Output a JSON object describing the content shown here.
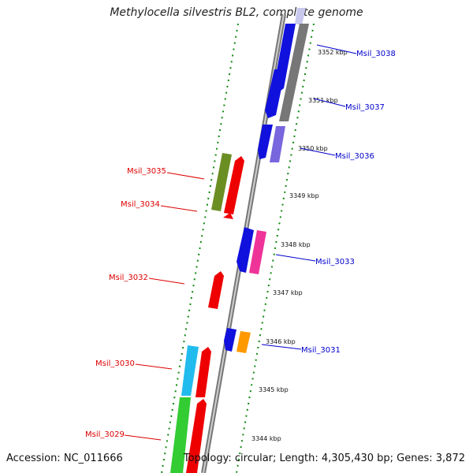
{
  "title": "Methylocella silvestris BL2, complete genome",
  "footer": {
    "accession": "Accession: NC_011666",
    "topology": "Topology: circular; Length: 4,305,430 bp; Genes: 3,872"
  },
  "ticks": [
    "3352 kbp",
    "3351 kbp",
    "3350 kbp",
    "3349 kbp",
    "3348 kbp",
    "3347 kbp",
    "3346 kbp",
    "3345 kbp",
    "3344 kbp"
  ],
  "gene_labels": {
    "right": [
      "Msil_3038",
      "Msil_3037",
      "Msil_3036",
      "Msil_3033",
      "Msil_3031"
    ],
    "left": [
      "Msil_3035",
      "Msil_3034",
      "Msil_3032",
      "Msil_3030",
      "Msil_3029"
    ]
  },
  "colors": {
    "right_label": "#0000cc",
    "left_label": "#dd0000",
    "tick_mark": "#118811",
    "backbone": "#999999"
  }
}
